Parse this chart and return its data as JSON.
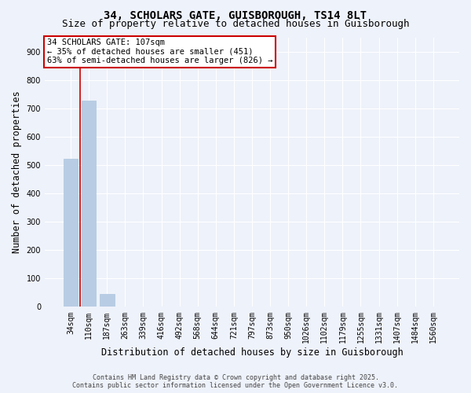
{
  "title1": "34, SCHOLARS GATE, GUISBOROUGH, TS14 8LT",
  "title2": "Size of property relative to detached houses in Guisborough",
  "xlabel": "Distribution of detached houses by size in Guisborough",
  "ylabel": "Number of detached properties",
  "categories": [
    "34sqm",
    "110sqm",
    "187sqm",
    "263sqm",
    "339sqm",
    "416sqm",
    "492sqm",
    "568sqm",
    "644sqm",
    "721sqm",
    "797sqm",
    "873sqm",
    "950sqm",
    "1026sqm",
    "1102sqm",
    "1179sqm",
    "1255sqm",
    "1331sqm",
    "1407sqm",
    "1484sqm",
    "1560sqm"
  ],
  "values": [
    522,
    726,
    45,
    0,
    0,
    0,
    0,
    0,
    0,
    0,
    0,
    0,
    0,
    0,
    0,
    0,
    0,
    0,
    0,
    0,
    0
  ],
  "bar_color": "#b8cce4",
  "bar_edge_color": "#aec6de",
  "highlight_vline_x": 0.5,
  "highlight_vline_color": "#cc0000",
  "ylim": [
    0,
    950
  ],
  "yticks": [
    0,
    100,
    200,
    300,
    400,
    500,
    600,
    700,
    800,
    900
  ],
  "annotation_title": "34 SCHOLARS GATE: 107sqm",
  "annotation_line1": "← 35% of detached houses are smaller (451)",
  "annotation_line2": "63% of semi-detached houses are larger (826) →",
  "footer_line1": "Contains HM Land Registry data © Crown copyright and database right 2025.",
  "footer_line2": "Contains public sector information licensed under the Open Government Licence v3.0.",
  "background_color": "#eef2fa",
  "grid_color": "#ffffff",
  "annotation_box_color": "#ffffff",
  "annotation_box_edge": "#cc0000",
  "title_fontsize": 10,
  "subtitle_fontsize": 9,
  "tick_fontsize": 7,
  "label_fontsize": 8.5,
  "annotation_fontsize": 7.5,
  "footer_fontsize": 6
}
